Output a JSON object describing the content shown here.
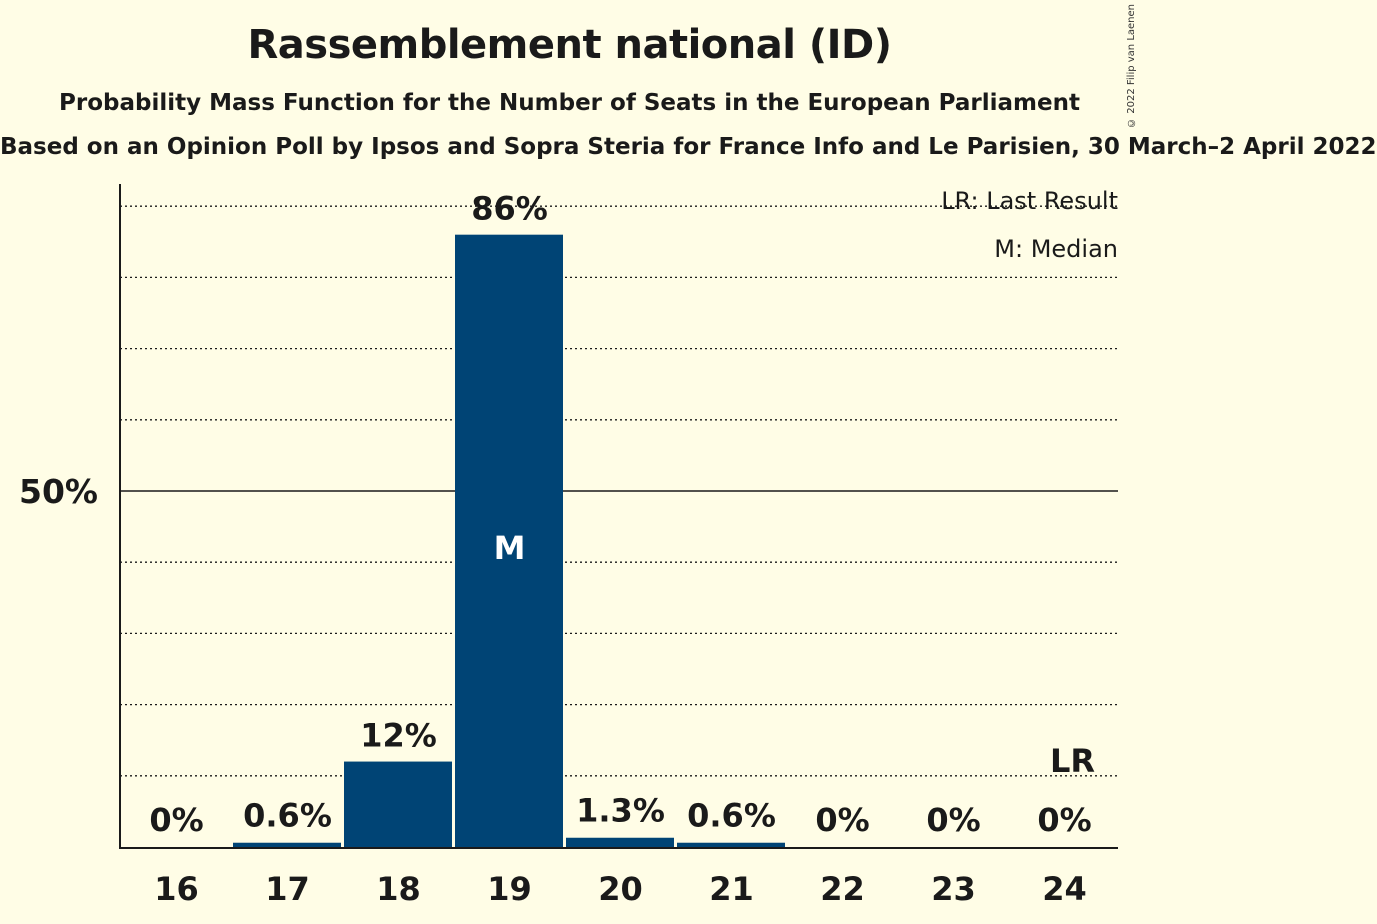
{
  "title": "Rassemblement national (ID)",
  "subtitle": "Probability Mass Function for the Number of Seats in the European Parliament",
  "subtitle2": "Based on an Opinion Poll by Ipsos and Sopra Steria for France Info and Le Parisien, 30 March–2 April 2022",
  "copyright": "© 2022 Filip van Laenen",
  "legend": {
    "last_result": "LR: Last Result",
    "median": "M: Median"
  },
  "colors": {
    "bar": "#004475",
    "background": "#fffde6"
  },
  "chart_data": {
    "type": "bar",
    "categories": [
      "16",
      "17",
      "18",
      "19",
      "20",
      "21",
      "22",
      "23",
      "24"
    ],
    "values": [
      0,
      0.6,
      12,
      86,
      1.3,
      0.6,
      0,
      0,
      0
    ],
    "labels": [
      "0%",
      "0.6%",
      "12%",
      "86%",
      "1.3%",
      "0.6%",
      "0%",
      "0%",
      "0%"
    ],
    "ylim": [
      0,
      94
    ],
    "ytick_label": "50%",
    "ytick_value": 50,
    "grid_step": 10,
    "median_category": "19",
    "median_marker": "M",
    "last_result_category": "24",
    "last_result_marker": "LR",
    "legend_position": "top-right"
  }
}
